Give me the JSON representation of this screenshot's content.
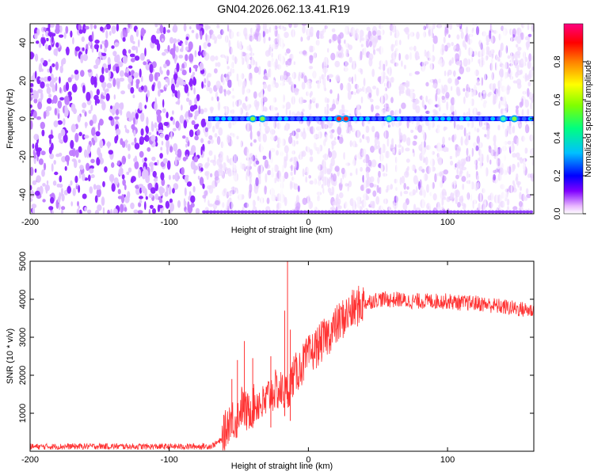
{
  "title": "GN04.2026.062.13.41.R19",
  "chart_data": [
    {
      "type": "heatmap",
      "xlabel": "Height of straight line (km)",
      "ylabel": "Frequency (Hz)",
      "xlim": [
        -200,
        162
      ],
      "ylim": [
        -50,
        50
      ],
      "xticks": [
        -200,
        -100,
        0,
        100
      ],
      "yticks": [
        -40,
        -20,
        0,
        20,
        40
      ],
      "colorbar": {
        "label": "Normalized spectral amplitude",
        "range": [
          0,
          1
        ],
        "ticks": [
          "0.0",
          "0.2",
          "0.4",
          "0.6",
          "0.8"
        ],
        "colormap": [
          "#ffffff",
          "#e9b8ff",
          "#8000ff",
          "#0000ff",
          "#00c0ff",
          "#00ff80",
          "#80ff00",
          "#ffff00",
          "#ff8000",
          "#ff0000",
          "#ff0080"
        ]
      },
      "signal_band": {
        "frequency_hz": 0,
        "start_km": -72,
        "end_km": 162,
        "strong_points": [
          {
            "x": -40,
            "amp": 0.5
          },
          {
            "x": -33,
            "amp": 0.55
          },
          {
            "x": 22,
            "amp": 0.95
          },
          {
            "x": 27,
            "amp": 0.9
          },
          {
            "x": 58,
            "amp": 0.45
          },
          {
            "x": 140,
            "amp": 0.4
          },
          {
            "x": 148,
            "amp": 0.5
          }
        ]
      }
    },
    {
      "type": "line",
      "xlabel": "Height of straight line (km)",
      "ylabel": "SNR (10 * v/v)",
      "xlim": [
        -200,
        162
      ],
      "ylim": [
        0,
        5000
      ],
      "xticks": [
        -200,
        -100,
        0,
        100
      ],
      "yticks": [
        1000,
        2000,
        3000,
        4000,
        5000
      ],
      "color": "#ff3333",
      "series": [
        {
          "x": [
            -200,
            -150,
            -100,
            -70,
            -62,
            -56,
            -52,
            -48,
            -44,
            -40,
            -36,
            -32,
            -28,
            -24,
            -20,
            -16,
            -12,
            -8,
            -4,
            0,
            5,
            10,
            15,
            20,
            25,
            30,
            35,
            40,
            45,
            50,
            55,
            60,
            65,
            70,
            80,
            90,
            100,
            110,
            120,
            130,
            140,
            150,
            162
          ],
          "y": [
            120,
            130,
            120,
            130,
            300,
            900,
            800,
            1200,
            1000,
            1200,
            1300,
            1200,
            1500,
            1600,
            1600,
            1500,
            1900,
            2100,
            2300,
            2500,
            2700,
            2900,
            3100,
            3300,
            3500,
            3650,
            3800,
            3900,
            3950,
            4000,
            4000,
            3980,
            4000,
            3950,
            3950,
            3950,
            3950,
            3900,
            3900,
            3850,
            3800,
            3750,
            3700
          ]
        }
      ],
      "spikes": [
        {
          "x": -55,
          "y": 1900
        },
        {
          "x": -51,
          "y": 2400
        },
        {
          "x": -46,
          "y": 2900
        },
        {
          "x": -40,
          "y": 2450
        },
        {
          "x": -27,
          "y": 2500
        },
        {
          "x": -17,
          "y": 3700
        },
        {
          "x": -15,
          "y": 5000
        },
        {
          "x": -13,
          "y": 3200
        }
      ]
    }
  ]
}
